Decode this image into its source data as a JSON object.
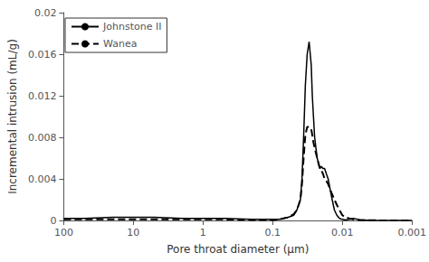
{
  "chart_data": {
    "type": "line",
    "title": "",
    "xlabel": "Pore throat diameter (μm)",
    "ylabel": "Incremental intrusion (mL/g)",
    "log": "x",
    "xlim": [
      100,
      0.001
    ],
    "xticks": [
      100,
      10,
      1,
      0.1,
      0.01,
      0.001
    ],
    "ylim": [
      0,
      0.02
    ],
    "yticks": [
      0,
      0.004,
      0.008,
      0.012,
      0.016,
      0.02
    ],
    "grid": false,
    "legend": "upper left",
    "series": [
      {
        "name": "Johnstone II",
        "color": "black",
        "line_style": "solid",
        "x": [
          100,
          50,
          20,
          10,
          5,
          2,
          1,
          0.5,
          0.2,
          0.1,
          0.08,
          0.07,
          0.06,
          0.05,
          0.045,
          0.04,
          0.038,
          0.036,
          0.034,
          0.032,
          0.03,
          0.028,
          0.027,
          0.026,
          0.025,
          0.024,
          0.023,
          0.022,
          0.021,
          0.02,
          0.019,
          0.018,
          0.017,
          0.016,
          0.015,
          0.014,
          0.013,
          0.012,
          0.011,
          0.01,
          0.009,
          0.008,
          0.0075,
          0.007,
          0.0065,
          0.006,
          0.0055,
          0.005,
          0.0045,
          0.004,
          0.003,
          0.002,
          0.001
        ],
        "values": [
          0.0002,
          0.0002,
          0.0003,
          0.0003,
          0.0003,
          0.0002,
          0.0002,
          0.0002,
          0.0001,
          0.0001,
          0.0001,
          0.0002,
          0.0003,
          0.0005,
          0.001,
          0.002,
          0.004,
          0.008,
          0.013,
          0.016,
          0.0172,
          0.015,
          0.012,
          0.01,
          0.008,
          0.007,
          0.006,
          0.0055,
          0.005,
          0.0052,
          0.005,
          0.005,
          0.0045,
          0.004,
          0.003,
          0.002,
          0.001,
          0.0005,
          0.0002,
          0.0001,
          5e-05,
          0.0001,
          0.00015,
          0.0002,
          0.00015,
          0.0001,
          5e-05,
          5e-05,
          3e-05,
          2e-05,
          1e-05,
          1e-05,
          1e-05
        ]
      },
      {
        "name": "Wanea",
        "color": "black",
        "line_style": "dashed",
        "x": [
          100,
          50,
          20,
          10,
          5,
          2,
          1,
          0.5,
          0.2,
          0.1,
          0.08,
          0.07,
          0.06,
          0.05,
          0.045,
          0.04,
          0.038,
          0.036,
          0.034,
          0.032,
          0.03,
          0.028,
          0.027,
          0.026,
          0.025,
          0.024,
          0.023,
          0.022,
          0.021,
          0.02,
          0.019,
          0.018,
          0.017,
          0.016,
          0.015,
          0.014,
          0.013,
          0.012,
          0.011,
          0.01,
          0.009,
          0.008,
          0.007,
          0.006,
          0.005,
          0.004,
          0.003,
          0.002,
          0.001
        ],
        "values": [
          0.0001,
          0.0001,
          0.0001,
          0.0001,
          0.0001,
          0.0001,
          0.0001,
          0.0001,
          5e-05,
          5e-05,
          0.0001,
          0.0002,
          0.0003,
          0.0006,
          0.001,
          0.002,
          0.0035,
          0.006,
          0.0082,
          0.009,
          0.009,
          0.0088,
          0.0082,
          0.0075,
          0.007,
          0.0065,
          0.006,
          0.0055,
          0.005,
          0.0048,
          0.0045,
          0.004,
          0.0038,
          0.0035,
          0.003,
          0.0025,
          0.002,
          0.0015,
          0.001,
          0.0005,
          0.0003,
          0.0002,
          0.0001,
          5e-05,
          3e-05,
          2e-05,
          1e-05,
          1e-05,
          1e-05
        ]
      }
    ]
  }
}
